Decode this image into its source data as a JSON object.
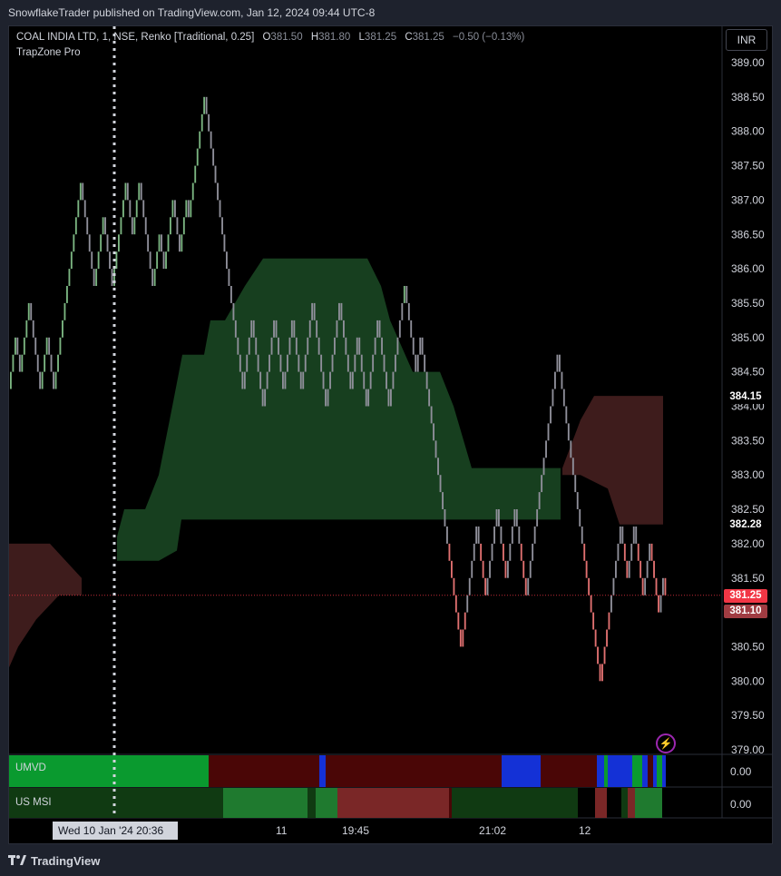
{
  "publish_header": "SnowflakeTrader published on TradingView.com, Jan 12, 2024 09:44 UTC-8",
  "legend": {
    "symbol": "COAL INDIA LTD, 1, NSE, Renko [Traditional, 0.25]",
    "o_label": "O",
    "o_value": "381.50",
    "h_label": "H",
    "h_value": "381.80",
    "l_label": "L",
    "l_value": "381.25",
    "c_label": "C",
    "c_value": "381.25",
    "change": "−0.50 (−0.13%)",
    "indicator": "TrapZone Pro"
  },
  "currency_button": "INR",
  "price_axis": {
    "ticks": [
      "389.00",
      "388.50",
      "388.00",
      "387.50",
      "387.00",
      "386.50",
      "386.00",
      "385.50",
      "385.00",
      "384.50",
      "384.00",
      "383.50",
      "383.00",
      "382.50",
      "382.00",
      "381.50",
      "381.00",
      "380.50",
      "380.00",
      "379.50",
      "379.00"
    ],
    "tag_high": "384.15",
    "tag_low": "382.28",
    "tag_last": "381.25",
    "tag_prev": "381.10"
  },
  "panes": {
    "umvd": {
      "label": "UMVD",
      "value": "0.00"
    },
    "usmsi": {
      "label": "US MSI",
      "value": "0.00"
    }
  },
  "time_axis": {
    "cursor_date": "Wed 10 Jan '24  20:36",
    "labels": [
      "11",
      "19:45",
      "21:02",
      "12"
    ]
  },
  "footer": {
    "brand": "TradingView"
  },
  "colors": {
    "up": "#7bb581",
    "neutral": "#8f8f9a",
    "down": "#e07070",
    "zone_green": "#173f1f",
    "zone_red": "#3e1c1c",
    "accent_purple": "#9c27b0"
  },
  "chart_data": {
    "type": "renko",
    "y_range": [
      379.0,
      389.0
    ],
    "box_size": 0.25,
    "last_price": 381.25,
    "price_path": [
      384.25,
      385,
      384.5,
      385.5,
      384.25,
      385,
      384.25,
      384.5,
      385.5,
      385.75,
      387.25,
      385.75,
      386.75,
      385.75,
      387.25,
      386.5,
      387.25,
      385.75,
      386.5,
      386,
      387,
      386.25,
      387,
      386.75,
      387.5,
      388.5,
      387.25,
      387.25,
      385.5,
      385,
      384.75,
      384.25,
      385.25,
      384,
      385.25,
      384.25,
      385.25,
      384.25,
      385.5,
      384,
      385.5,
      384.25,
      385,
      384,
      385.25,
      384,
      385.75,
      384.5,
      385,
      383.75,
      382,
      381.5,
      381,
      380.5,
      381,
      382.25,
      381.25,
      382.5,
      381.5,
      382.5,
      381.25,
      382.5,
      382.5,
      383,
      383.25,
      383.5,
      384.75,
      383,
      382.25,
      381.5,
      380.25,
      380,
      381,
      381.25,
      382.25,
      381.5,
      382.25,
      381.25,
      382,
      381,
      381.5,
      381.25
    ]
  }
}
